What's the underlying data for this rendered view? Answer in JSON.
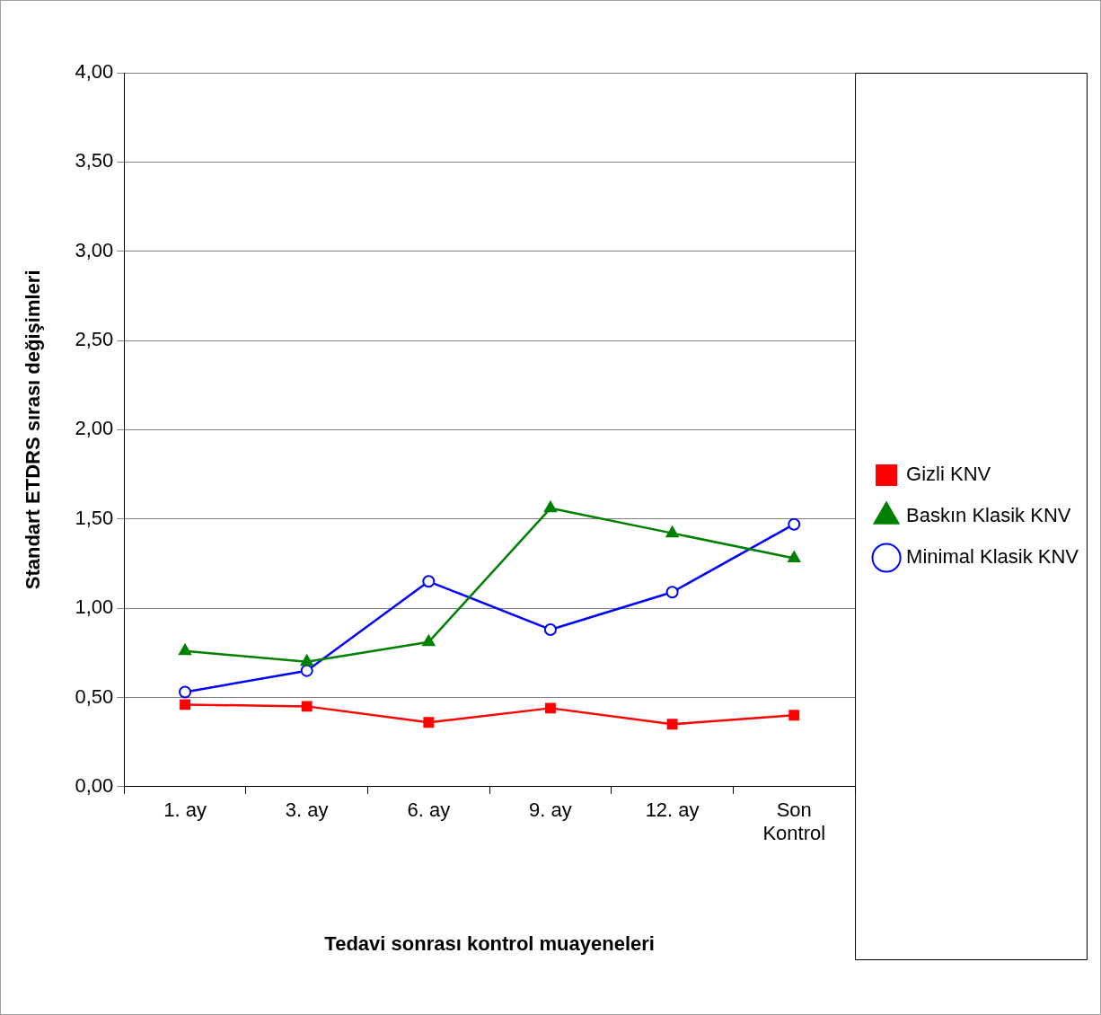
{
  "chart_data": {
    "type": "line",
    "xlabel": "Tedavi sonrası kontrol muayeneleri",
    "ylabel": "Standart ETDRS sırası değişimleri",
    "categories": [
      "1. ay",
      "3. ay",
      "6. ay",
      "9. ay",
      "12. ay",
      "Son Kontrol"
    ],
    "series": [
      {
        "name": "Gizli KNV",
        "color": "#ff0000",
        "marker": "square",
        "values": [
          0.46,
          0.45,
          0.36,
          0.44,
          0.35,
          0.4
        ]
      },
      {
        "name": "Baskın Klasik KNV",
        "color": "#008000",
        "marker": "triangle",
        "values": [
          0.76,
          0.7,
          0.81,
          1.56,
          1.42,
          1.28
        ]
      },
      {
        "name": "Minimal Klasik KNV",
        "color": "#0000ff",
        "marker": "circle",
        "values": [
          0.53,
          0.65,
          1.15,
          0.88,
          1.09,
          1.47
        ]
      }
    ],
    "ylim": [
      0,
      4
    ],
    "yticks": [
      {
        "value": 0,
        "label": "0,00"
      },
      {
        "value": 0.5,
        "label": "0,50"
      },
      {
        "value": 1,
        "label": "1,00"
      },
      {
        "value": 1.5,
        "label": "1,50"
      },
      {
        "value": 2,
        "label": "2,00"
      },
      {
        "value": 2.5,
        "label": "2,50"
      },
      {
        "value": 3,
        "label": "3,00"
      },
      {
        "value": 3.5,
        "label": "3,50"
      },
      {
        "value": 4,
        "label": "4,00"
      }
    ],
    "grid": "y",
    "legend": "right",
    "line_style": "solid"
  }
}
